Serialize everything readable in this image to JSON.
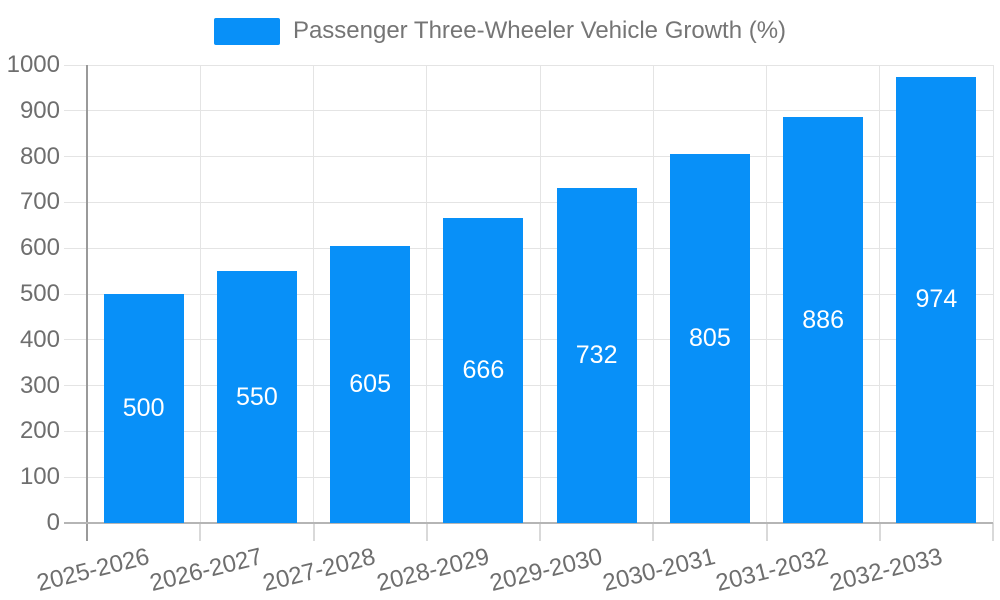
{
  "chart_data": {
    "type": "bar",
    "title": "Passenger Three-Wheeler Vehicle Growth (%)",
    "categories": [
      "2025-2026",
      "2026-2027",
      "2027-2028",
      "2028-2029",
      "2029-2030",
      "2030-2031",
      "2031-2032",
      "2032-2033"
    ],
    "values": [
      500,
      550,
      605,
      666,
      732,
      805,
      886,
      974
    ],
    "yticks": [
      0,
      100,
      200,
      300,
      400,
      500,
      600,
      700,
      800,
      900,
      1000
    ],
    "ylim": [
      0,
      1000
    ],
    "xlabel": "",
    "ylabel": "",
    "legend_position": "top-center",
    "grid": "horizontal and vertical gridlines on",
    "bar_color": "#0890f8",
    "value_label_color": "#ffffff",
    "axis_text_color": "#6e6e6e",
    "legend_text_color": "#757575",
    "grid_color": "#e4e4e4",
    "y_axis_line_color": "#9a9a9a",
    "x_axis_line_color": "#b5b5b5",
    "background_color": "#ffffff"
  }
}
